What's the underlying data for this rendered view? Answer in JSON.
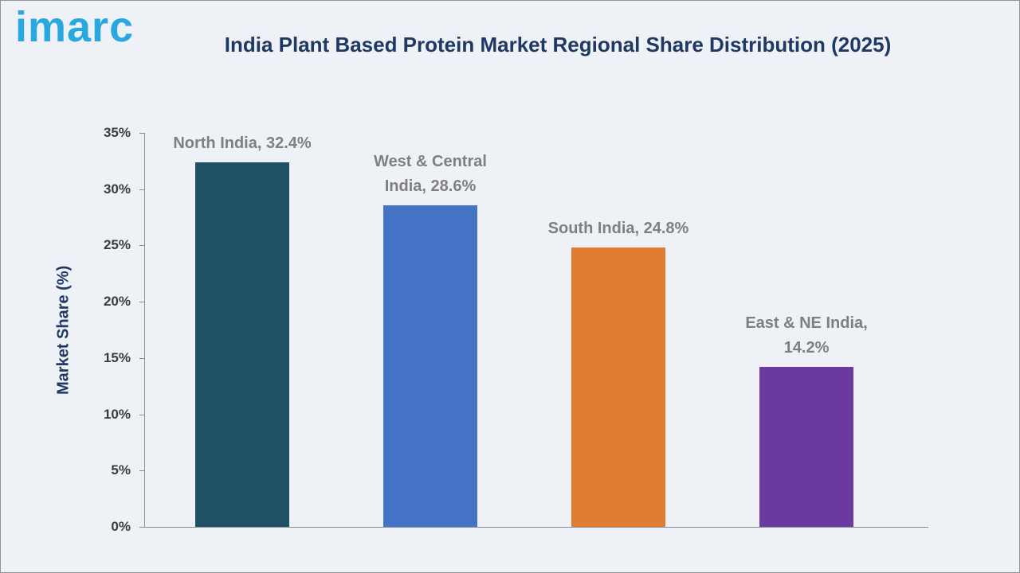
{
  "header": {
    "logo_text": "imarc",
    "title": "India Plant Based Protein Market Regional Share Distribution (2025)"
  },
  "chart_data": {
    "type": "bar",
    "title": "India Plant Based Protein Market Regional Share Distribution (2025)",
    "xlabel": "",
    "ylabel": "Market Share (%)",
    "ylim": [
      0,
      35
    ],
    "grid": false,
    "legend": "none",
    "categories": [
      "North India",
      "West & Central India",
      "South India",
      "East & NE India"
    ],
    "values": [
      32.4,
      28.6,
      24.8,
      14.2
    ],
    "bar_labels": [
      [
        "North India, 32.4%"
      ],
      [
        "West & Central",
        "India, 28.6%"
      ],
      [
        "South India, 24.8%"
      ],
      [
        "East & NE India,",
        "14.2%"
      ]
    ],
    "colors": [
      "#1f5066",
      "#4472c4",
      "#e07d30",
      "#6b3aa0"
    ],
    "label_color": "#7f7f7f",
    "axis_color": "#898c90",
    "yticks": [
      {
        "value": 0,
        "label": "0%"
      },
      {
        "value": 5,
        "label": "5%"
      },
      {
        "value": 10,
        "label": "10%"
      },
      {
        "value": 15,
        "label": "15%"
      },
      {
        "value": 20,
        "label": "20%"
      },
      {
        "value": 25,
        "label": "25%"
      },
      {
        "value": 30,
        "label": "30%"
      },
      {
        "value": 35,
        "label": "35%"
      }
    ]
  }
}
